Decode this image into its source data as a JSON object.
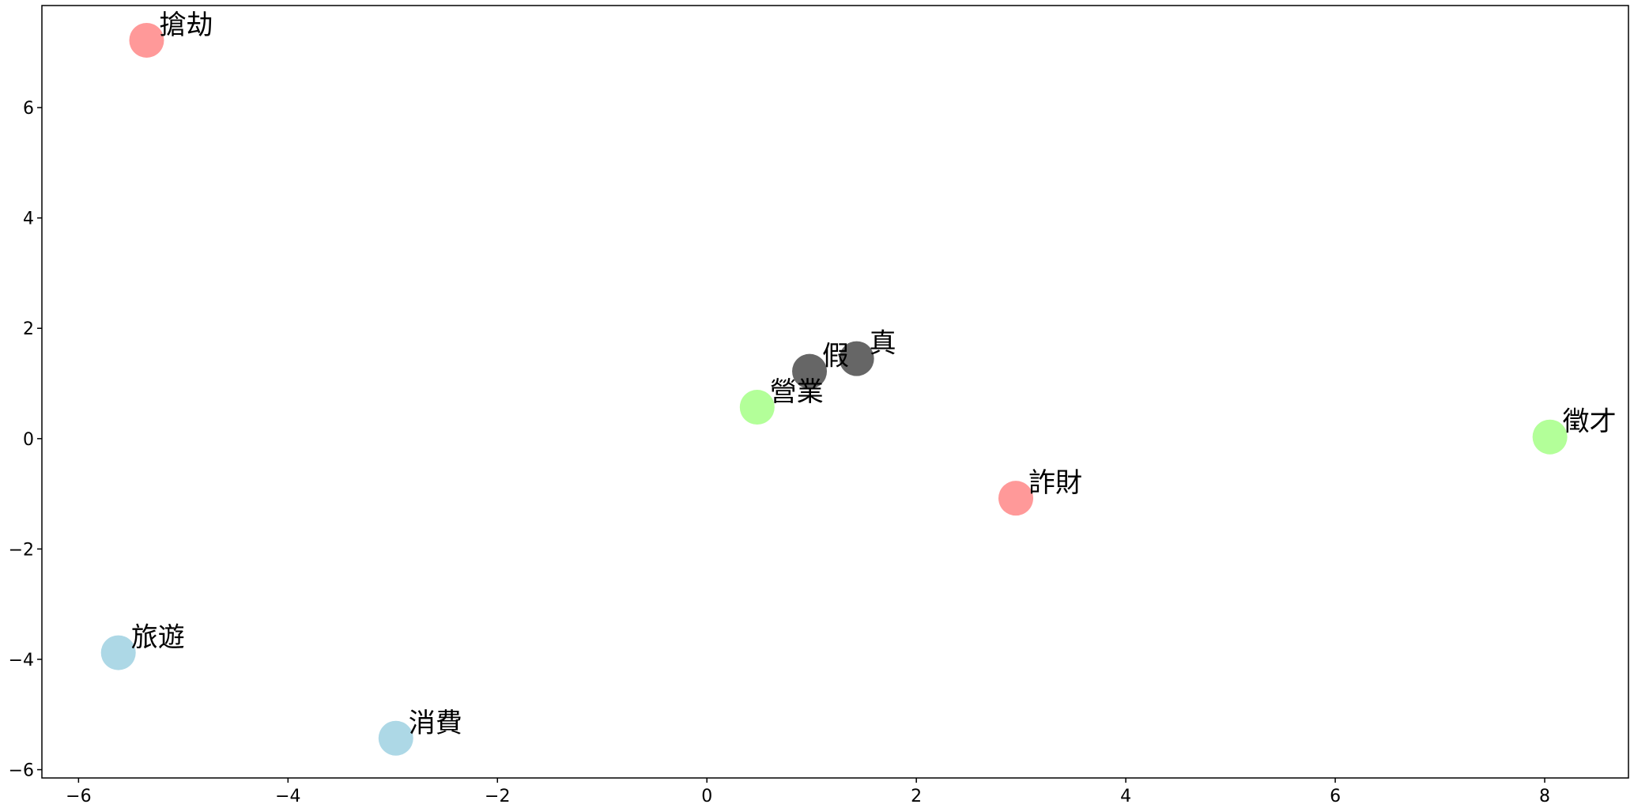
{
  "chart_data": {
    "type": "scatter",
    "title": "",
    "xlabel": "",
    "ylabel": "",
    "xlim": [
      -6.35,
      8.8
    ],
    "ylim": [
      -6.15,
      7.85
    ],
    "xticks": [
      -6,
      -4,
      -2,
      0,
      2,
      4,
      6,
      8
    ],
    "yticks": [
      -6,
      -4,
      -2,
      0,
      2,
      4,
      6
    ],
    "xtick_labels": [
      "−6",
      "−4",
      "−2",
      "0",
      "2",
      "4",
      "6",
      "8"
    ],
    "ytick_labels": [
      "−6",
      "−4",
      "−2",
      "0",
      "2",
      "4",
      "6"
    ],
    "grid": false,
    "points": [
      {
        "label": "搶劫",
        "x": -5.35,
        "y": 7.22,
        "color": "#ff9999"
      },
      {
        "label": "詐財",
        "x": 2.95,
        "y": -1.08,
        "color": "#ff9999"
      },
      {
        "label": "假",
        "x": 0.98,
        "y": 1.22,
        "color": "#666666"
      },
      {
        "label": "真",
        "x": 1.43,
        "y": 1.45,
        "color": "#666666"
      },
      {
        "label": "營業",
        "x": 0.48,
        "y": 0.57,
        "color": "#b3ff99"
      },
      {
        "label": "徵才",
        "x": 8.05,
        "y": 0.03,
        "color": "#b3ff99"
      },
      {
        "label": "旅遊",
        "x": -5.62,
        "y": -3.88,
        "color": "#add8e6"
      },
      {
        "label": "消費",
        "x": -2.97,
        "y": -5.43,
        "color": "#add8e6"
      }
    ]
  }
}
